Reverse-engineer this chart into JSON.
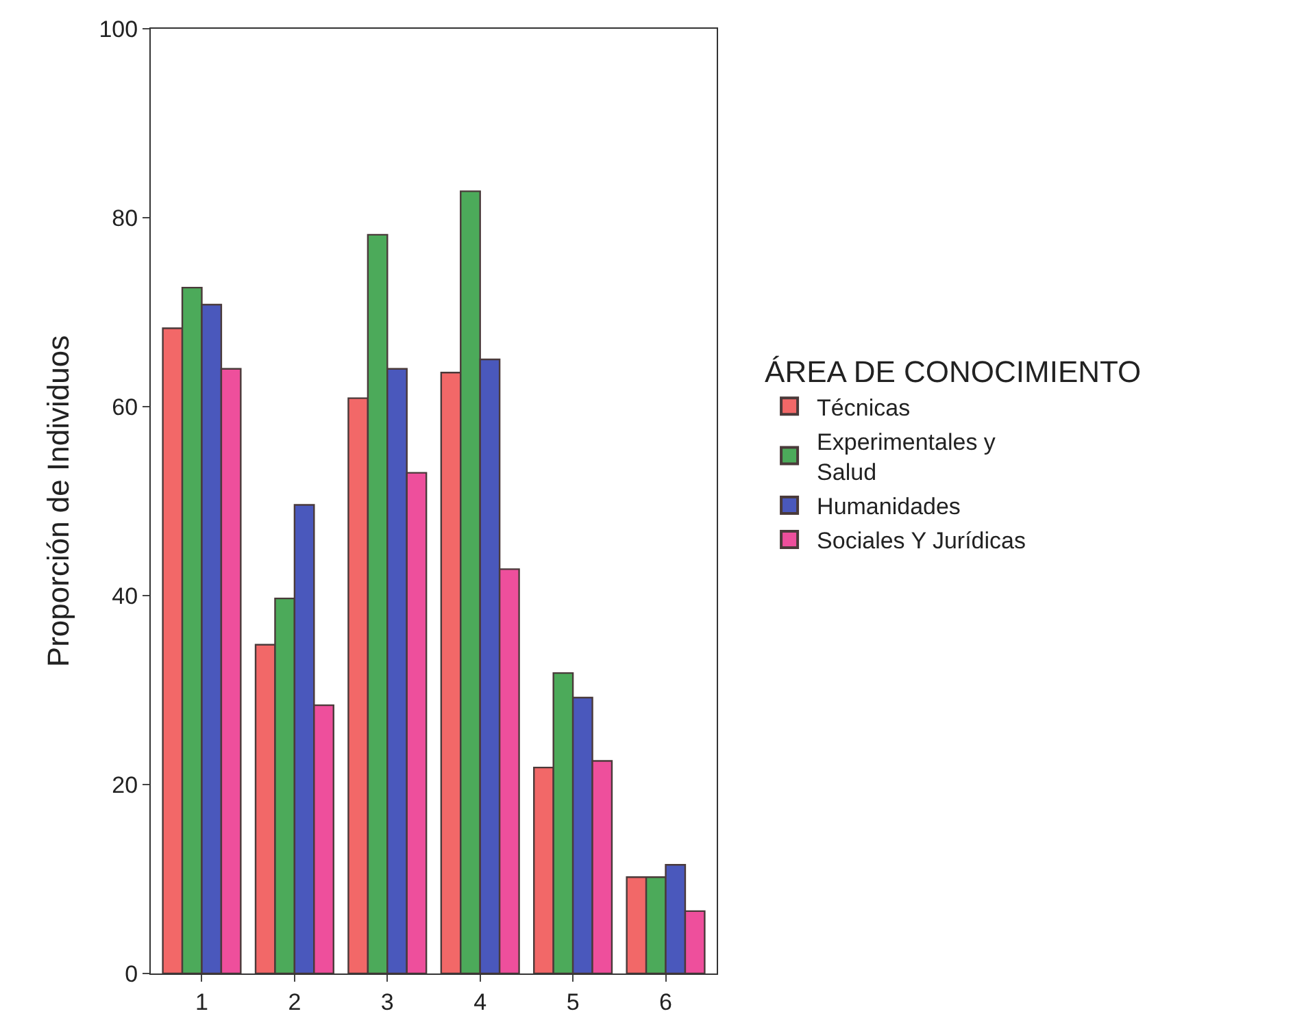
{
  "chart_data": {
    "type": "bar",
    "ylabel": "Proporción de Individuos",
    "legend_title": "ÁREA DE CONOCIMIENTO",
    "categories": [
      "1",
      "2",
      "3",
      "4",
      "5",
      "6"
    ],
    "series": [
      {
        "name": "Técnicas",
        "color": "#f26868",
        "values": [
          68.3,
          34.8,
          60.9,
          63.6,
          21.8,
          10.2
        ]
      },
      {
        "name": "Experimentales y Salud",
        "color": "#4caa5a",
        "values": [
          72.6,
          39.7,
          78.2,
          82.8,
          31.8,
          10.2
        ]
      },
      {
        "name": "Humanidades",
        "color": "#4a58bc",
        "values": [
          70.8,
          49.6,
          64.0,
          65.0,
          29.2,
          11.5
        ]
      },
      {
        "name": "Sociales Y Jurídicas",
        "color": "#ee4f9c",
        "values": [
          64.0,
          28.4,
          53.0,
          42.8,
          22.5,
          6.6
        ]
      }
    ],
    "ylim": [
      0,
      100
    ],
    "yticks": [
      0,
      20,
      40,
      60,
      80,
      100
    ],
    "legend": "right"
  }
}
